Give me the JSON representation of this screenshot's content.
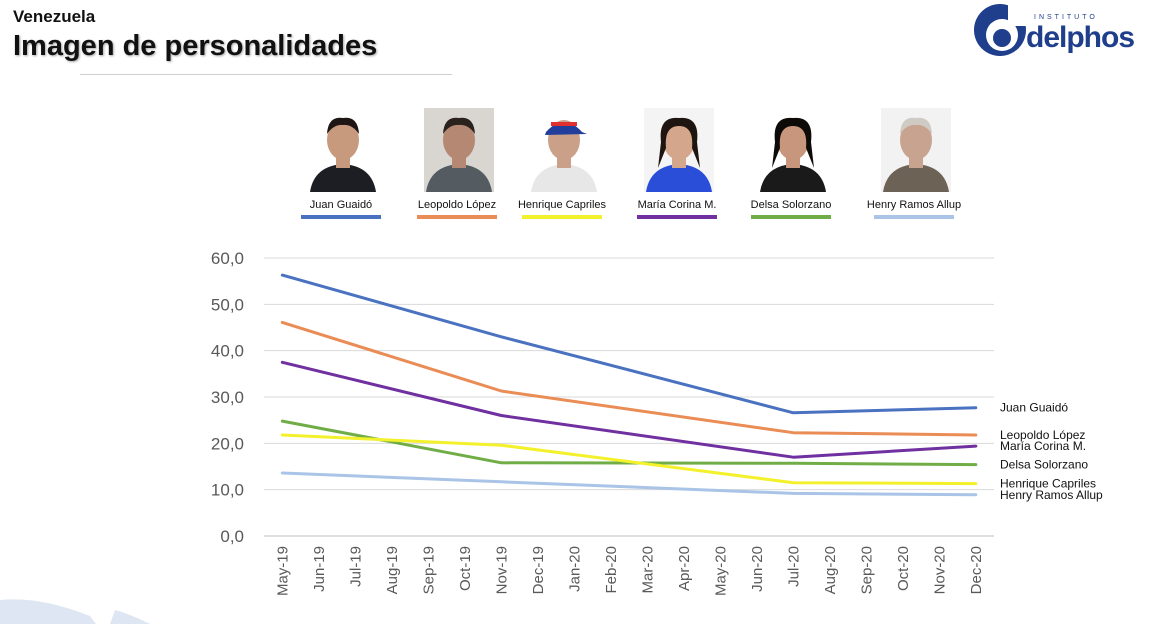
{
  "header": {
    "country": "Venezuela",
    "title": "Imagen de personalidades"
  },
  "logo": {
    "supertext": "INSTITUTO",
    "word": "delphos",
    "brand_color": "#1f3e8c"
  },
  "people": [
    {
      "name": "Juan Guaidó",
      "color": "#4a72c0",
      "icon": "portrait-juan-guaido"
    },
    {
      "name": "Leopoldo López",
      "color": "#ea8c55",
      "icon": "portrait-leopoldo-lopez"
    },
    {
      "name": "Henrique Capriles",
      "color": "#f3f12c",
      "icon": "portrait-henrique-capriles"
    },
    {
      "name": "María Corina M.",
      "color": "#7030a0",
      "icon": "portrait-maria-corina"
    },
    {
      "name": "Delsa Solorzano",
      "color": "#70ad47",
      "icon": "portrait-delsa-solorzano"
    },
    {
      "name": "Henry Ramos Allup",
      "color": "#a9c4e6",
      "icon": "portrait-henry-ramos-allup"
    }
  ],
  "chart_data": {
    "type": "line",
    "x": [
      "May-19",
      "Jun-19",
      "Jul-19",
      "Aug-19",
      "Sep-19",
      "Oct-19",
      "Nov-19",
      "Dec-19",
      "Jan-20",
      "Feb-20",
      "Mar-20",
      "Apr-20",
      "May-20",
      "Jun-20",
      "Jul-20",
      "Aug-20",
      "Sep-20",
      "Oct-20",
      "Nov-20",
      "Dec-20"
    ],
    "ylim": [
      0,
      60
    ],
    "yticks": [
      "0,0",
      "10,0",
      "20,0",
      "30,0",
      "40,0",
      "50,0",
      "60,0"
    ],
    "grid": true,
    "series": [
      {
        "name": "Juan Guaidó",
        "label": "Juan Guaidó",
        "color": "#4a72c0",
        "points": [
          [
            0,
            56.3
          ],
          [
            6,
            43.0
          ],
          [
            14,
            26.6
          ],
          [
            19,
            27.7
          ]
        ]
      },
      {
        "name": "Leopoldo López",
        "label": "Leopoldo López",
        "color": "#ea8c55",
        "points": [
          [
            0,
            46.1
          ],
          [
            6,
            31.3
          ],
          [
            14,
            22.3
          ],
          [
            19,
            21.8
          ]
        ]
      },
      {
        "name": "María Corina M.",
        "label": "María Corina M.",
        "color": "#7030a0",
        "points": [
          [
            0,
            37.5
          ],
          [
            6,
            26.0
          ],
          [
            14,
            17.0
          ],
          [
            19,
            19.4
          ]
        ]
      },
      {
        "name": "Delsa Solorzano",
        "label": "Delsa Solorzano",
        "color": "#70ad47",
        "points": [
          [
            0,
            24.8
          ],
          [
            6,
            15.8
          ],
          [
            14,
            15.7
          ],
          [
            19,
            15.4
          ]
        ]
      },
      {
        "name": "Henrique Capriles",
        "label": "Henrique Capriles",
        "color": "#f3f12c",
        "points": [
          [
            0,
            21.8
          ],
          [
            6,
            19.6
          ],
          [
            14,
            11.5
          ],
          [
            19,
            11.3
          ]
        ]
      },
      {
        "name": "Henry Ramos Allup",
        "label": "Henry Ramos Allup",
        "color": "#a9c4e6",
        "points": [
          [
            0,
            13.6
          ],
          [
            6,
            11.7
          ],
          [
            14,
            9.2
          ],
          [
            19,
            8.9
          ]
        ]
      }
    ]
  }
}
